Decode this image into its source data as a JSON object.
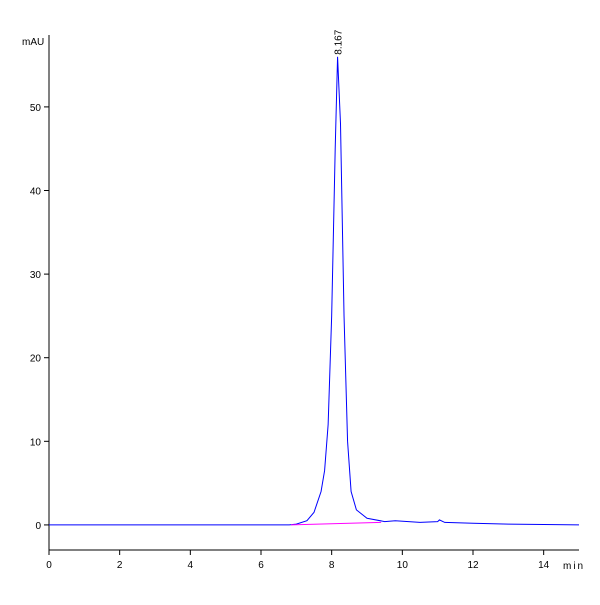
{
  "chart_data": {
    "type": "line",
    "x_label": "min",
    "y_label": "mAU",
    "xlim": [
      0,
      15
    ],
    "ylim": [
      -3,
      58.6
    ],
    "xticks": [
      0,
      2,
      4,
      6,
      8,
      10,
      12,
      14
    ],
    "yticks": [
      0,
      10,
      20,
      30,
      40,
      50
    ],
    "series": [
      {
        "color": "#0000ff",
        "x": [
          0,
          2,
          4,
          6,
          6.8,
          7.0,
          7.3,
          7.5,
          7.7,
          7.8,
          7.9,
          8.0,
          8.1,
          8.167,
          8.25,
          8.35,
          8.45,
          8.55,
          8.7,
          9.0,
          9.5,
          9.8,
          10.5,
          11.0,
          11.05,
          11.2,
          12,
          13,
          14,
          15
        ],
        "values": [
          0,
          0,
          0,
          0,
          0,
          0.1,
          0.5,
          1.5,
          4,
          6.5,
          12,
          25,
          45,
          56,
          48,
          25,
          10,
          4,
          1.8,
          0.8,
          0.4,
          0.5,
          0.3,
          0.4,
          0.6,
          0.3,
          0.2,
          0.1,
          0.05,
          0
        ]
      },
      {
        "color": "#ff00ff",
        "x": [
          6.85,
          9.4
        ],
        "values": [
          0,
          0.3
        ]
      }
    ],
    "annotations": [
      {
        "x": 8.167,
        "y": 56
      }
    ]
  }
}
